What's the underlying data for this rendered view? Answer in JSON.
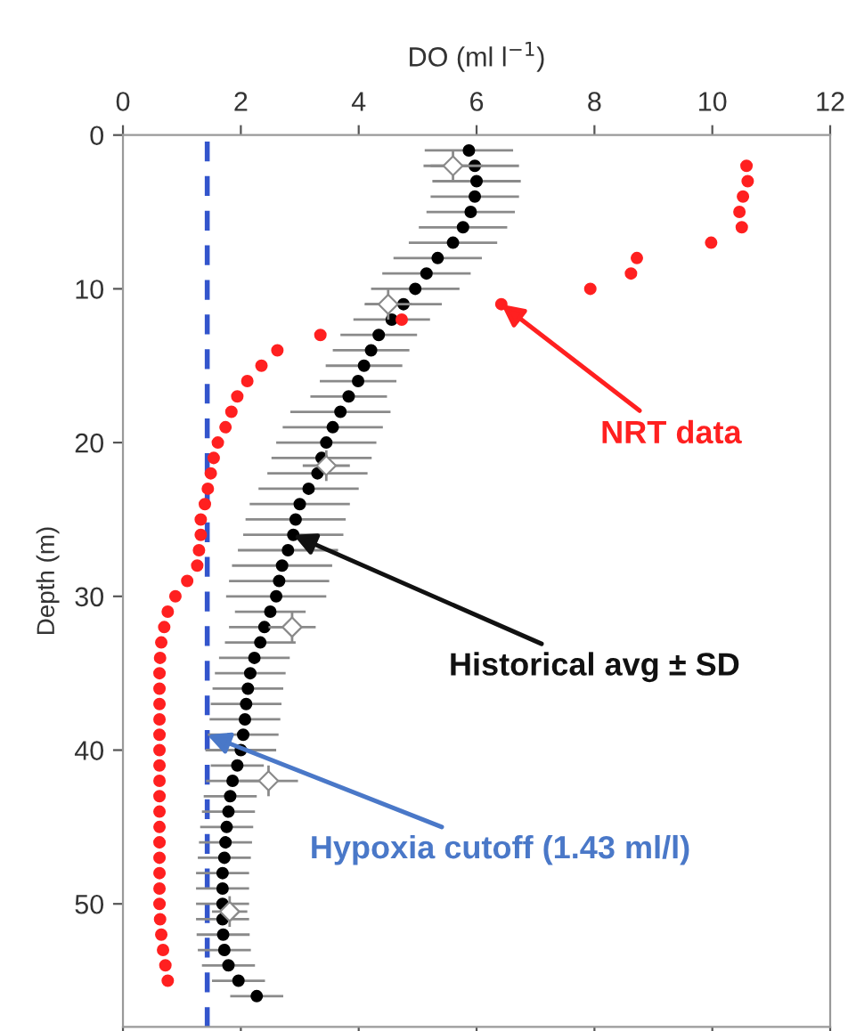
{
  "chart_data": {
    "type": "scatter",
    "xlabel": "DO (ml l$^{−1}$)",
    "ylabel": "Depth (m)",
    "xlim": [
      0,
      12
    ],
    "xticks": [
      0,
      2,
      4,
      6,
      8,
      10,
      12
    ],
    "ylim": [
      58,
      0
    ],
    "yticks": [
      0,
      10,
      20,
      30,
      40,
      50
    ],
    "grid": false,
    "legend": false,
    "series": [
      {
        "color": "#000000",
        "marker": "circle",
        "x": [
          5.87,
          5.97,
          6.0,
          5.97,
          5.9,
          5.77,
          5.6,
          5.34,
          5.15,
          4.96,
          4.76,
          4.56,
          4.34,
          4.21,
          4.09,
          3.99,
          3.83,
          3.69,
          3.56,
          3.45,
          3.37,
          3.3,
          3.15,
          3.0,
          2.93,
          2.89,
          2.8,
          2.7,
          2.65,
          2.6,
          2.5,
          2.4,
          2.33,
          2.23,
          2.16,
          2.12,
          2.09,
          2.07,
          2.04,
          2.0,
          1.94,
          1.86,
          1.82,
          1.79,
          1.76,
          1.74,
          1.72,
          1.69,
          1.69,
          1.69,
          1.69,
          1.7,
          1.72,
          1.79,
          1.96,
          2.27
        ],
        "values": [
          1,
          2,
          3,
          4,
          5,
          6,
          7,
          8,
          9,
          10,
          11,
          12,
          13,
          14,
          15,
          16,
          17,
          18,
          19,
          20,
          21,
          22,
          23,
          24,
          25,
          26,
          27,
          28,
          29,
          30,
          31,
          32,
          33,
          34,
          35,
          36,
          37,
          38,
          39,
          40,
          41,
          42,
          43,
          44,
          45,
          46,
          47,
          48,
          49,
          50,
          51,
          52,
          53,
          54,
          55,
          56
        ],
        "xerrors": [
          0.75,
          0.75,
          0.75,
          0.75,
          0.75,
          0.75,
          0.75,
          0.75,
          0.75,
          0.75,
          0.65,
          0.65,
          0.65,
          0.65,
          0.65,
          0.65,
          0.65,
          0.85,
          0.85,
          0.85,
          0.85,
          0.85,
          0.85,
          0.85,
          0.85,
          0.85,
          0.85,
          0.85,
          0.85,
          0.85,
          0.6,
          0.6,
          0.6,
          0.6,
          0.6,
          0.6,
          0.6,
          0.6,
          0.6,
          0.6,
          0.45,
          0.45,
          0.45,
          0.45,
          0.45,
          0.45,
          0.45,
          0.45,
          0.45,
          0.45,
          0.45,
          0.45,
          0.45,
          0.45,
          0.45,
          0.45
        ]
      },
      {
        "color": "#ffffff",
        "marker": "diamond",
        "x": [
          5.6,
          4.5,
          3.45,
          2.87,
          2.47,
          1.81
        ],
        "values": [
          2,
          11,
          21.5,
          32,
          42,
          50.5
        ],
        "xerrors": [
          0.5,
          0.4,
          0.4,
          0.4,
          0.5,
          0.3
        ],
        "errors": [
          1,
          1,
          1,
          1,
          1,
          1
        ]
      },
      {
        "color": "#ff2020",
        "marker": "circle",
        "x": [
          10.58,
          10.6,
          10.52,
          10.46,
          10.5,
          9.98,
          8.72,
          8.62,
          7.93,
          6.42,
          4.73,
          3.35,
          2.62,
          2.35,
          2.11,
          1.94,
          1.84,
          1.74,
          1.61,
          1.54,
          1.49,
          1.44,
          1.39,
          1.32,
          1.32,
          1.29,
          1.26,
          1.09,
          0.89,
          0.76,
          0.7,
          0.65,
          0.63,
          0.62,
          0.62,
          0.62,
          0.62,
          0.62,
          0.62,
          0.62,
          0.62,
          0.62,
          0.62,
          0.62,
          0.62,
          0.62,
          0.62,
          0.62,
          0.62,
          0.63,
          0.65,
          0.68,
          0.72,
          0.76
        ],
        "values": [
          2,
          3,
          4,
          5,
          6,
          7,
          8,
          9,
          10,
          11,
          12,
          13,
          14,
          15,
          16,
          17,
          18,
          19,
          20,
          21,
          22,
          23,
          24,
          25,
          26,
          27,
          28,
          29,
          30,
          31,
          32,
          33,
          34,
          35,
          36,
          37,
          38,
          39,
          40,
          41,
          42,
          43,
          44,
          45,
          46,
          47,
          48,
          49,
          50,
          51,
          52,
          53,
          54,
          55
        ]
      }
    ],
    "ref_lines": [
      {
        "axis": "x",
        "value": 1.43,
        "color": "#3355cc",
        "line_style": "dashed"
      }
    ],
    "annotations": [
      {
        "text": "NRT data",
        "x": 6.42,
        "y": 11
      },
      {
        "text": "Historical avg ± SD",
        "x": 2.89,
        "y": 26
      },
      {
        "text": "Hypoxia cutoff (1.43 ml/l)",
        "x": 1.43,
        "y": 39
      }
    ]
  }
}
